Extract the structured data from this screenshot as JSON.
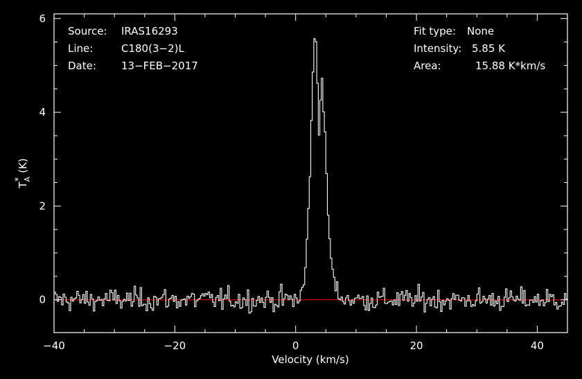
{
  "chart_data": {
    "type": "line",
    "step": true,
    "xlabel": "Velocity (km/s)",
    "ylabel": "T",
    "ylabel_sup": "*",
    "ylabel_sub": "A",
    "ylabel_unit": "(K)",
    "xlim": [
      -40,
      45
    ],
    "ylim": [
      -0.7,
      6.1
    ],
    "x_ticks": [
      -40,
      -20,
      0,
      20,
      40
    ],
    "x_tick_labels": [
      "−40",
      "−20",
      "0",
      "20",
      "40"
    ],
    "y_ticks": [
      0,
      2,
      4,
      6
    ],
    "y_tick_labels": [
      "0",
      "2",
      "4",
      "6"
    ],
    "grid": false,
    "baseline": 0,
    "colors": {
      "background": "#000000",
      "data": "#ffffff",
      "baseline": "#cc0000",
      "axes": "#ffffff"
    },
    "info_left": [
      {
        "label": "Source:",
        "value": "IRAS16293"
      },
      {
        "label": "Line:",
        "value": "C180(3−2)L"
      },
      {
        "label": "Date:",
        "value": "13−FEB−2017"
      }
    ],
    "info_right": [
      {
        "label": "Fit type:",
        "value": "None"
      },
      {
        "label": "Intensity:",
        "value": "5.85 K"
      },
      {
        "label": "Area:",
        "value": "15.88 K*km/s"
      }
    ],
    "series": [
      {
        "x": [
          -40,
          -35,
          -30,
          -25,
          -20,
          -15,
          -10,
          -5,
          0,
          1,
          1.5,
          2,
          2.5,
          3,
          3.3,
          3.5,
          3.7,
          4,
          4.2,
          4.5,
          4.7,
          5,
          5.5,
          6,
          6.5,
          7,
          8,
          10,
          15,
          20,
          25,
          30,
          35,
          40,
          45
        ],
        "values": [
          0,
          0,
          0,
          0,
          0,
          0,
          0,
          0,
          0,
          0.1,
          0.4,
          1.5,
          3.2,
          5.3,
          5.85,
          5.3,
          4.2,
          3.55,
          4.6,
          4.75,
          3.8,
          3.0,
          1.5,
          0.7,
          0.3,
          0.1,
          0.05,
          0,
          0,
          0,
          0,
          0,
          0,
          0,
          0
        ]
      }
    ],
    "noise_rms_K": 0.12,
    "channel_width_kms": 0.25
  }
}
